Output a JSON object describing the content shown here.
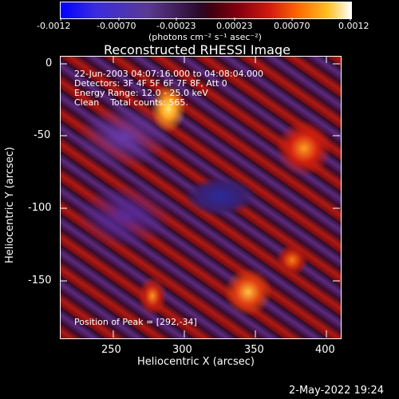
{
  "colorbar": {
    "ticks": [
      "-0.0012",
      "-0.00070",
      "-0.00023",
      "0.00023",
      "0.00070",
      "0.0012"
    ],
    "unit_label": "(photons cm⁻² s⁻¹ asec⁻²)"
  },
  "plot": {
    "title": "Reconstructed RHESSI Image",
    "xlabel": "Heliocentric X (arcsec)",
    "ylabel": "Heliocentric Y (arcsec)",
    "xticks": [
      "250",
      "300",
      "350",
      "400"
    ],
    "yticks": [
      "0",
      "-50",
      "-100",
      "-150"
    ]
  },
  "info": {
    "line1": "22-Jun-2003 04:07:16.000 to 04:08:04.000",
    "line2": "Detectors: 3F 4F 5F 6F 7F 8F, Att 0",
    "line3": "Energy Range: 12.0 - 25.0 keV",
    "line4": "Clean    Total counts: 565.",
    "peak": "Position of Peak = [292,-34]"
  },
  "footer": {
    "date": "2-May-2022 19:24"
  },
  "colors": {
    "background": "#000000",
    "foreground": "#ffffff",
    "negative": "#3a2ae0",
    "positive": "#ffd84a"
  }
}
